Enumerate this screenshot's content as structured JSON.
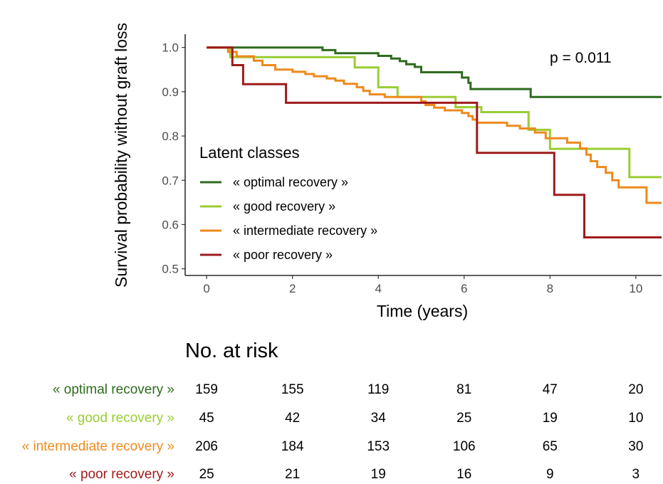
{
  "chart_data": {
    "type": "line",
    "step": true,
    "xlabel": "Time (years)",
    "ylabel": "Survival probability without graft loss",
    "xlim": [
      -0.5,
      10.6
    ],
    "ylim": [
      0.485,
      1.03
    ],
    "x_ticks": [
      0,
      2,
      4,
      6,
      8,
      10
    ],
    "y_ticks": [
      "0.5",
      "0.6",
      "0.7",
      "0.8",
      "0.9",
      "1.0"
    ],
    "grid": false,
    "annotation": "p = 0.011",
    "legend": {
      "title": "Latent classes",
      "placement": "inside-left"
    },
    "series": [
      {
        "name": "« optimal recovery »",
        "color": "#2e6b1e",
        "points": [
          [
            0,
            1.0
          ],
          [
            2.7,
            1.0
          ],
          [
            2.7,
            0.994
          ],
          [
            3.0,
            0.994
          ],
          [
            3.0,
            0.987
          ],
          [
            4.0,
            0.987
          ],
          [
            4.0,
            0.981
          ],
          [
            4.3,
            0.981
          ],
          [
            4.3,
            0.975
          ],
          [
            4.5,
            0.975
          ],
          [
            4.5,
            0.969
          ],
          [
            4.65,
            0.969
          ],
          [
            4.65,
            0.962
          ],
          [
            4.85,
            0.962
          ],
          [
            4.85,
            0.956
          ],
          [
            5.0,
            0.956
          ],
          [
            5.0,
            0.944
          ],
          [
            5.95,
            0.944
          ],
          [
            5.95,
            0.932
          ],
          [
            6.1,
            0.932
          ],
          [
            6.1,
            0.92
          ],
          [
            6.15,
            0.92
          ],
          [
            6.15,
            0.906
          ],
          [
            7.55,
            0.906
          ],
          [
            7.55,
            0.888
          ],
          [
            10.6,
            0.888
          ]
        ]
      },
      {
        "name": "« good recovery »",
        "color": "#9acd32",
        "points": [
          [
            0,
            1.0
          ],
          [
            0.55,
            1.0
          ],
          [
            0.55,
            0.978
          ],
          [
            3.45,
            0.978
          ],
          [
            3.45,
            0.955
          ],
          [
            4.0,
            0.955
          ],
          [
            4.0,
            0.91
          ],
          [
            4.45,
            0.91
          ],
          [
            4.45,
            0.888
          ],
          [
            5.8,
            0.888
          ],
          [
            5.8,
            0.865
          ],
          [
            6.4,
            0.865
          ],
          [
            6.4,
            0.854
          ],
          [
            7.5,
            0.854
          ],
          [
            7.5,
            0.814
          ],
          [
            8.0,
            0.814
          ],
          [
            8.0,
            0.771
          ],
          [
            9.0,
            0.771
          ],
          [
            9.0,
            0.771
          ],
          [
            9.85,
            0.771
          ],
          [
            9.85,
            0.707
          ],
          [
            10.6,
            0.707
          ]
        ]
      },
      {
        "name": "« intermediate recovery »",
        "color": "#ee8a1c",
        "points": [
          [
            0,
            1.0
          ],
          [
            0.5,
            1.0
          ],
          [
            0.5,
            0.99
          ],
          [
            0.7,
            0.99
          ],
          [
            0.7,
            0.98
          ],
          [
            1.1,
            0.98
          ],
          [
            1.1,
            0.97
          ],
          [
            1.3,
            0.97
          ],
          [
            1.3,
            0.96
          ],
          [
            1.6,
            0.96
          ],
          [
            1.6,
            0.95
          ],
          [
            2.0,
            0.95
          ],
          [
            2.0,
            0.945
          ],
          [
            2.3,
            0.945
          ],
          [
            2.3,
            0.94
          ],
          [
            2.5,
            0.94
          ],
          [
            2.5,
            0.935
          ],
          [
            2.8,
            0.935
          ],
          [
            2.8,
            0.93
          ],
          [
            3.0,
            0.93
          ],
          [
            3.0,
            0.925
          ],
          [
            3.2,
            0.925
          ],
          [
            3.2,
            0.918
          ],
          [
            3.5,
            0.918
          ],
          [
            3.5,
            0.91
          ],
          [
            3.65,
            0.91
          ],
          [
            3.65,
            0.902
          ],
          [
            3.8,
            0.902
          ],
          [
            3.8,
            0.894
          ],
          [
            4.15,
            0.894
          ],
          [
            4.15,
            0.888
          ],
          [
            5.0,
            0.888
          ],
          [
            5.0,
            0.878
          ],
          [
            5.1,
            0.878
          ],
          [
            5.1,
            0.87
          ],
          [
            5.3,
            0.87
          ],
          [
            5.3,
            0.864
          ],
          [
            5.55,
            0.864
          ],
          [
            5.55,
            0.858
          ],
          [
            5.95,
            0.858
          ],
          [
            5.95,
            0.852
          ],
          [
            6.1,
            0.852
          ],
          [
            6.1,
            0.845
          ],
          [
            6.2,
            0.845
          ],
          [
            6.2,
            0.837
          ],
          [
            6.3,
            0.837
          ],
          [
            6.3,
            0.83
          ],
          [
            7.0,
            0.83
          ],
          [
            7.0,
            0.823
          ],
          [
            7.3,
            0.823
          ],
          [
            7.3,
            0.817
          ],
          [
            7.65,
            0.817
          ],
          [
            7.65,
            0.808
          ],
          [
            7.9,
            0.808
          ],
          [
            7.9,
            0.795
          ],
          [
            8.4,
            0.795
          ],
          [
            8.4,
            0.785
          ],
          [
            8.7,
            0.785
          ],
          [
            8.7,
            0.772
          ],
          [
            8.85,
            0.772
          ],
          [
            8.85,
            0.758
          ],
          [
            8.95,
            0.758
          ],
          [
            8.95,
            0.743
          ],
          [
            9.1,
            0.743
          ],
          [
            9.1,
            0.73
          ],
          [
            9.3,
            0.73
          ],
          [
            9.3,
            0.717
          ],
          [
            9.45,
            0.717
          ],
          [
            9.45,
            0.7
          ],
          [
            9.6,
            0.7
          ],
          [
            9.6,
            0.684
          ],
          [
            10.25,
            0.684
          ],
          [
            10.25,
            0.649
          ],
          [
            10.6,
            0.649
          ]
        ]
      },
      {
        "name": "« poor recovery »",
        "color": "#9e1b1b",
        "points": [
          [
            0,
            1.0
          ],
          [
            0.6,
            1.0
          ],
          [
            0.6,
            0.96
          ],
          [
            0.85,
            0.96
          ],
          [
            0.85,
            0.917
          ],
          [
            1.85,
            0.917
          ],
          [
            1.85,
            0.875
          ],
          [
            6.3,
            0.875
          ],
          [
            6.3,
            0.762
          ],
          [
            8.1,
            0.762
          ],
          [
            8.1,
            0.667
          ],
          [
            8.8,
            0.667
          ],
          [
            8.8,
            0.571
          ],
          [
            10.6,
            0.571
          ]
        ]
      }
    ]
  },
  "risk_table": {
    "title": "No. at risk",
    "times": [
      0,
      2,
      4,
      6,
      8,
      10
    ],
    "rows": [
      {
        "label": "« optimal recovery »",
        "color": "#2e6b1e",
        "counts": [
          "159",
          "155",
          "119",
          "81",
          "47",
          "20"
        ]
      },
      {
        "label": "« good recovery »",
        "color": "#9acd32",
        "counts": [
          "45",
          "42",
          "34",
          "25",
          "19",
          "10"
        ]
      },
      {
        "label": "« intermediate recovery »",
        "color": "#ee8a1c",
        "counts": [
          "206",
          "184",
          "153",
          "106",
          "65",
          "30"
        ]
      },
      {
        "label": "« poor recovery »",
        "color": "#9e1b1b",
        "counts": [
          "25",
          "21",
          "19",
          "16",
          "9",
          "3"
        ]
      }
    ]
  }
}
